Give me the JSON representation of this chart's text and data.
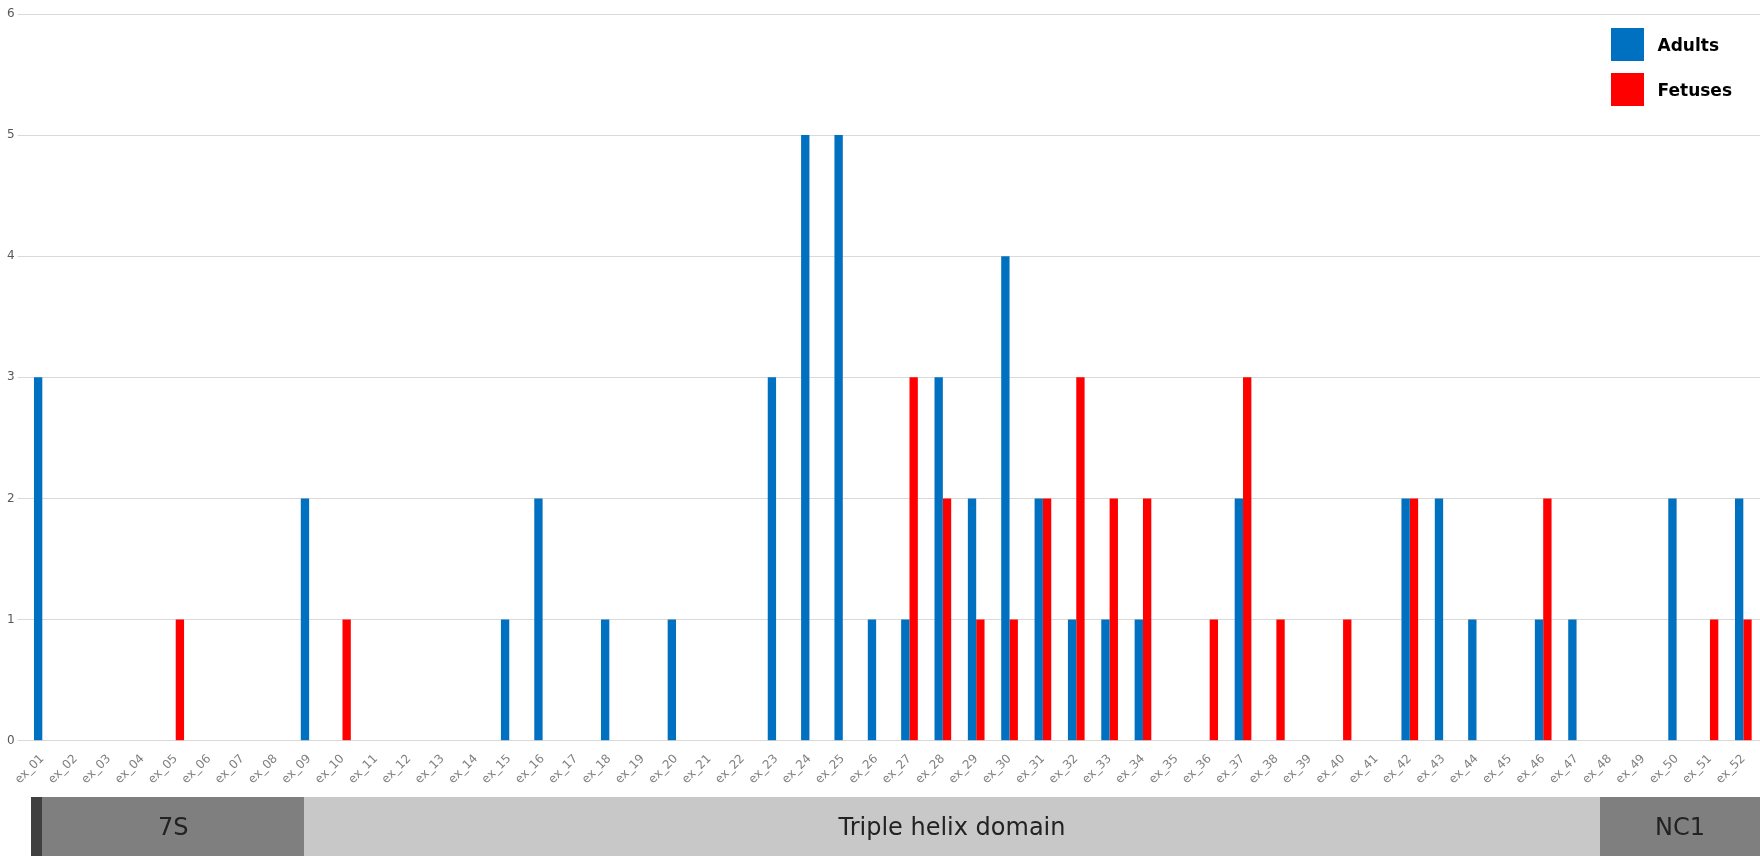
{
  "chart_data": {
    "type": "bar",
    "categories": [
      "ex_01",
      "ex_02",
      "ex_03",
      "ex_04",
      "ex_05",
      "ex_06",
      "ex_07",
      "ex_08",
      "ex_09",
      "ex_10",
      "ex_11",
      "ex_12",
      "ex_13",
      "ex_14",
      "ex_15",
      "ex_16",
      "ex_17",
      "ex_18",
      "ex_19",
      "ex_20",
      "ex_21",
      "ex_22",
      "ex_23",
      "ex_24",
      "ex_25",
      "ex_26",
      "ex_27",
      "ex_28",
      "ex_29",
      "ex_30",
      "ex_31",
      "ex_32",
      "ex_33",
      "ex_34",
      "ex_35",
      "ex_36",
      "ex_37",
      "ex_38",
      "ex_39",
      "ex_40",
      "ex_41",
      "ex_42",
      "ex_43",
      "ex_44",
      "ex_45",
      "ex_46",
      "ex_47",
      "ex_48",
      "ex_49",
      "ex_50",
      "ex_51",
      "ex_52"
    ],
    "series": [
      {
        "name": "Adults",
        "color": "#0070c0",
        "values": [
          3,
          0,
          0,
          0,
          0,
          0,
          0,
          0,
          2,
          0,
          0,
          0,
          0,
          0,
          1,
          2,
          0,
          1,
          0,
          1,
          0,
          0,
          3,
          5,
          5,
          1,
          1,
          3,
          2,
          4,
          2,
          1,
          1,
          1,
          0,
          0,
          2,
          0,
          0,
          0,
          0,
          2,
          2,
          1,
          0,
          1,
          1,
          0,
          0,
          2,
          0,
          2
        ]
      },
      {
        "name": "Fetuses",
        "color": "#ff0000",
        "values": [
          0,
          0,
          0,
          0,
          1,
          0,
          0,
          0,
          0,
          1,
          0,
          0,
          0,
          0,
          0,
          0,
          0,
          0,
          0,
          0,
          0,
          0,
          0,
          0,
          0,
          0,
          3,
          2,
          1,
          1,
          2,
          3,
          2,
          2,
          0,
          1,
          3,
          1,
          0,
          1,
          0,
          2,
          0,
          0,
          0,
          2,
          0,
          0,
          0,
          0,
          1,
          1
        ]
      }
    ],
    "ylim": [
      0,
      6
    ],
    "yticks": [
      0,
      1,
      2,
      3,
      4,
      5,
      6
    ],
    "grid": "y",
    "legend": "top right",
    "annotations": [
      "7S",
      "Triple helix domain",
      "NC1"
    ]
  }
}
